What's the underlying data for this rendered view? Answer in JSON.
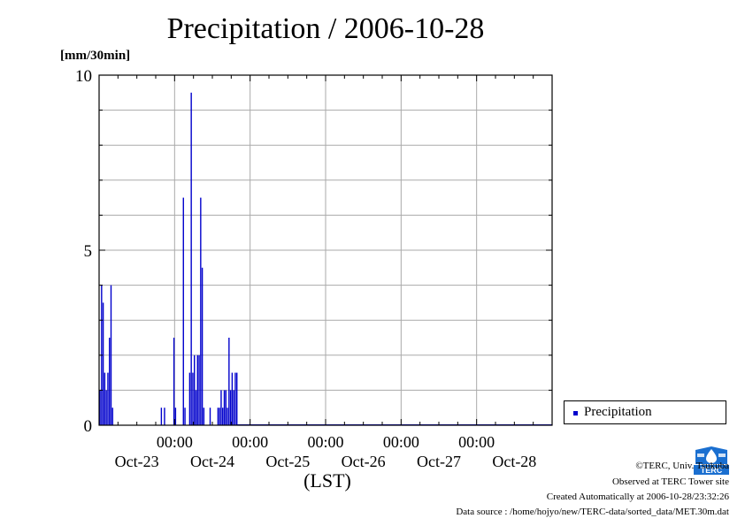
{
  "title": "Precipitation / 2006-10-28",
  "unit_label": "[mm/30min]",
  "legend": {
    "label": "Precipitation",
    "color": "#0000cc"
  },
  "credits": {
    "line1": "©TERC, Univ. Tsukuba",
    "line2": "Observed at TERC Tower site",
    "line3": "Created Automatically at 2006-10-28/23:32:26",
    "line4": "Data source : /home/hojyo/new/TERC-data/sorted_data/MET.30m.dat"
  },
  "logo_text": "TERC",
  "chart_data": {
    "type": "bar",
    "title": "Precipitation / 2006-10-28",
    "xlabel": "(LST)",
    "ylabel": "[mm/30min]",
    "ylim": [
      0,
      10
    ],
    "yticks": [
      "0",
      "5",
      "10"
    ],
    "x_range_hours": [
      0,
      144
    ],
    "x_tick_time_label": "00:00",
    "x_day_labels": [
      "Oct-23",
      "Oct-24",
      "Oct-25",
      "Oct-26",
      "Oct-27",
      "Oct-28"
    ],
    "grid": true,
    "legend_position": "bottom-right",
    "series": [
      {
        "name": "Precipitation",
        "color": "#0000cc",
        "points": [
          {
            "h": 0.0,
            "v": 1.0
          },
          {
            "h": 0.5,
            "v": 4.0
          },
          {
            "h": 1.0,
            "v": 3.5
          },
          {
            "h": 1.5,
            "v": 1.5
          },
          {
            "h": 2.0,
            "v": 1.0
          },
          {
            "h": 2.5,
            "v": 1.5
          },
          {
            "h": 3.0,
            "v": 2.5
          },
          {
            "h": 3.5,
            "v": 4.0
          },
          {
            "h": 4.0,
            "v": 0.5
          },
          {
            "h": 19.5,
            "v": 0.5
          },
          {
            "h": 20.5,
            "v": 0.5
          },
          {
            "h": 23.5,
            "v": 2.5
          },
          {
            "h": 24.0,
            "v": 0.5
          },
          {
            "h": 26.5,
            "v": 6.5
          },
          {
            "h": 27.0,
            "v": 0.5
          },
          {
            "h": 28.5,
            "v": 1.5
          },
          {
            "h": 29.0,
            "v": 9.5
          },
          {
            "h": 29.5,
            "v": 1.5
          },
          {
            "h": 30.0,
            "v": 2.0
          },
          {
            "h": 30.5,
            "v": 1.0
          },
          {
            "h": 31.0,
            "v": 2.0
          },
          {
            "h": 31.5,
            "v": 2.0
          },
          {
            "h": 32.0,
            "v": 6.5
          },
          {
            "h": 32.5,
            "v": 4.5
          },
          {
            "h": 33.0,
            "v": 0.5
          },
          {
            "h": 35.0,
            "v": 0.5
          },
          {
            "h": 37.5,
            "v": 0.5
          },
          {
            "h": 38.0,
            "v": 0.5
          },
          {
            "h": 38.5,
            "v": 1.0
          },
          {
            "h": 39.0,
            "v": 0.5
          },
          {
            "h": 39.5,
            "v": 1.0
          },
          {
            "h": 40.0,
            "v": 1.0
          },
          {
            "h": 40.5,
            "v": 0.5
          },
          {
            "h": 41.0,
            "v": 2.5
          },
          {
            "h": 41.5,
            "v": 1.0
          },
          {
            "h": 42.0,
            "v": 1.5
          },
          {
            "h": 42.5,
            "v": 1.0
          },
          {
            "h": 43.0,
            "v": 1.5
          },
          {
            "h": 43.5,
            "v": 1.5
          }
        ]
      }
    ]
  }
}
